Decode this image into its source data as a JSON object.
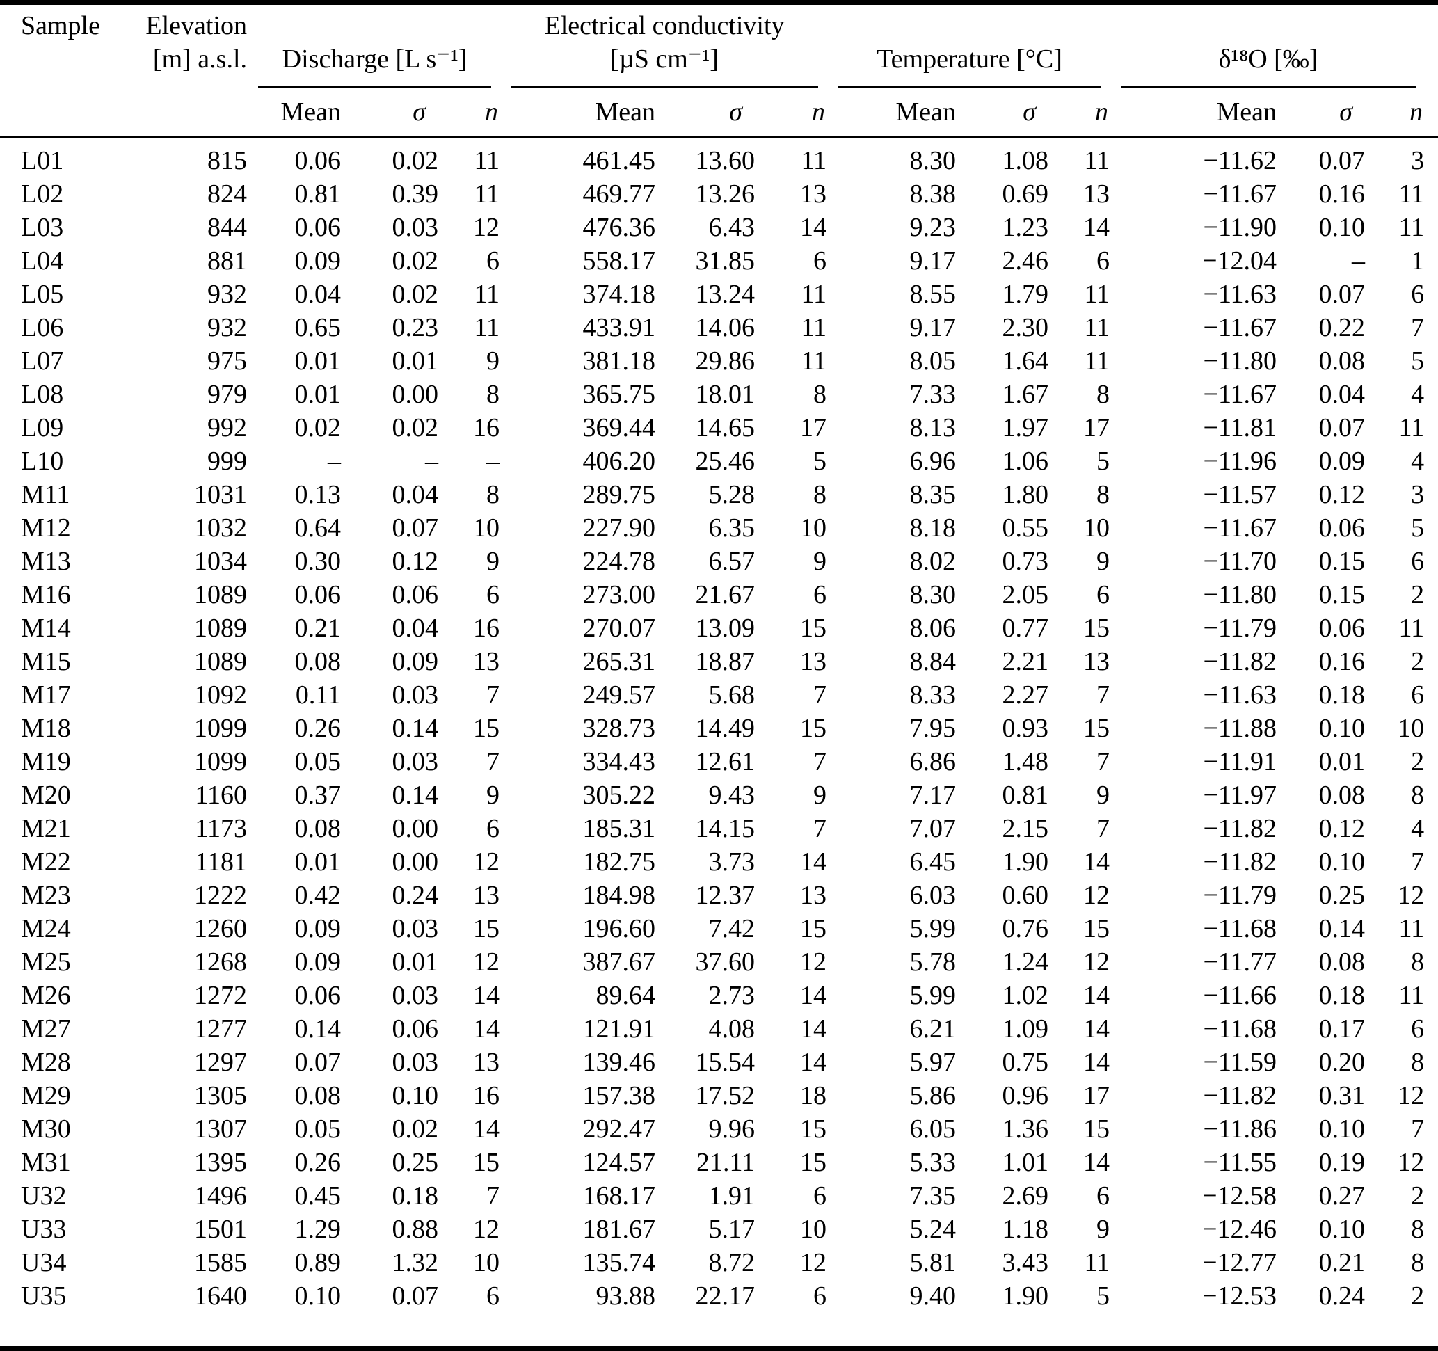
{
  "table": {
    "columns": {
      "sample": "Sample",
      "elevation_line1": "Elevation",
      "elevation_line2": "[m] a.s.l.",
      "groups": [
        {
          "title_line1": "",
          "title_line2": "Discharge [L s⁻¹]"
        },
        {
          "title_line1": "Electrical conductivity",
          "title_line2": "[µS cm⁻¹]"
        },
        {
          "title_line1": "",
          "title_line2": "Temperature [°C]"
        },
        {
          "title_line1": "",
          "title_line2": "δ¹⁸O [‰]"
        }
      ],
      "sub": {
        "mean": "Mean",
        "sigma": "σ",
        "n": "n"
      }
    },
    "rows": [
      [
        "L01",
        "815",
        "0.06",
        "0.02",
        "11",
        "461.45",
        "13.60",
        "11",
        "8.30",
        "1.08",
        "11",
        "−11.62",
        "0.07",
        "3"
      ],
      [
        "L02",
        "824",
        "0.81",
        "0.39",
        "11",
        "469.77",
        "13.26",
        "13",
        "8.38",
        "0.69",
        "13",
        "−11.67",
        "0.16",
        "11"
      ],
      [
        "L03",
        "844",
        "0.06",
        "0.03",
        "12",
        "476.36",
        "6.43",
        "14",
        "9.23",
        "1.23",
        "14",
        "−11.90",
        "0.10",
        "11"
      ],
      [
        "L04",
        "881",
        "0.09",
        "0.02",
        "6",
        "558.17",
        "31.85",
        "6",
        "9.17",
        "2.46",
        "6",
        "−12.04",
        "–",
        "1"
      ],
      [
        "L05",
        "932",
        "0.04",
        "0.02",
        "11",
        "374.18",
        "13.24",
        "11",
        "8.55",
        "1.79",
        "11",
        "−11.63",
        "0.07",
        "6"
      ],
      [
        "L06",
        "932",
        "0.65",
        "0.23",
        "11",
        "433.91",
        "14.06",
        "11",
        "9.17",
        "2.30",
        "11",
        "−11.67",
        "0.22",
        "7"
      ],
      [
        "L07",
        "975",
        "0.01",
        "0.01",
        "9",
        "381.18",
        "29.86",
        "11",
        "8.05",
        "1.64",
        "11",
        "−11.80",
        "0.08",
        "5"
      ],
      [
        "L08",
        "979",
        "0.01",
        "0.00",
        "8",
        "365.75",
        "18.01",
        "8",
        "7.33",
        "1.67",
        "8",
        "−11.67",
        "0.04",
        "4"
      ],
      [
        "L09",
        "992",
        "0.02",
        "0.02",
        "16",
        "369.44",
        "14.65",
        "17",
        "8.13",
        "1.97",
        "17",
        "−11.81",
        "0.07",
        "11"
      ],
      [
        "L10",
        "999",
        "–",
        "–",
        "–",
        "406.20",
        "25.46",
        "5",
        "6.96",
        "1.06",
        "5",
        "−11.96",
        "0.09",
        "4"
      ],
      [
        "M11",
        "1031",
        "0.13",
        "0.04",
        "8",
        "289.75",
        "5.28",
        "8",
        "8.35",
        "1.80",
        "8",
        "−11.57",
        "0.12",
        "3"
      ],
      [
        "M12",
        "1032",
        "0.64",
        "0.07",
        "10",
        "227.90",
        "6.35",
        "10",
        "8.18",
        "0.55",
        "10",
        "−11.67",
        "0.06",
        "5"
      ],
      [
        "M13",
        "1034",
        "0.30",
        "0.12",
        "9",
        "224.78",
        "6.57",
        "9",
        "8.02",
        "0.73",
        "9",
        "−11.70",
        "0.15",
        "6"
      ],
      [
        "M16",
        "1089",
        "0.06",
        "0.06",
        "6",
        "273.00",
        "21.67",
        "6",
        "8.30",
        "2.05",
        "6",
        "−11.80",
        "0.15",
        "2"
      ],
      [
        "M14",
        "1089",
        "0.21",
        "0.04",
        "16",
        "270.07",
        "13.09",
        "15",
        "8.06",
        "0.77",
        "15",
        "−11.79",
        "0.06",
        "11"
      ],
      [
        "M15",
        "1089",
        "0.08",
        "0.09",
        "13",
        "265.31",
        "18.87",
        "13",
        "8.84",
        "2.21",
        "13",
        "−11.82",
        "0.16",
        "2"
      ],
      [
        "M17",
        "1092",
        "0.11",
        "0.03",
        "7",
        "249.57",
        "5.68",
        "7",
        "8.33",
        "2.27",
        "7",
        "−11.63",
        "0.18",
        "6"
      ],
      [
        "M18",
        "1099",
        "0.26",
        "0.14",
        "15",
        "328.73",
        "14.49",
        "15",
        "7.95",
        "0.93",
        "15",
        "−11.88",
        "0.10",
        "10"
      ],
      [
        "M19",
        "1099",
        "0.05",
        "0.03",
        "7",
        "334.43",
        "12.61",
        "7",
        "6.86",
        "1.48",
        "7",
        "−11.91",
        "0.01",
        "2"
      ],
      [
        "M20",
        "1160",
        "0.37",
        "0.14",
        "9",
        "305.22",
        "9.43",
        "9",
        "7.17",
        "0.81",
        "9",
        "−11.97",
        "0.08",
        "8"
      ],
      [
        "M21",
        "1173",
        "0.08",
        "0.00",
        "6",
        "185.31",
        "14.15",
        "7",
        "7.07",
        "2.15",
        "7",
        "−11.82",
        "0.12",
        "4"
      ],
      [
        "M22",
        "1181",
        "0.01",
        "0.00",
        "12",
        "182.75",
        "3.73",
        "14",
        "6.45",
        "1.90",
        "14",
        "−11.82",
        "0.10",
        "7"
      ],
      [
        "M23",
        "1222",
        "0.42",
        "0.24",
        "13",
        "184.98",
        "12.37",
        "13",
        "6.03",
        "0.60",
        "12",
        "−11.79",
        "0.25",
        "12"
      ],
      [
        "M24",
        "1260",
        "0.09",
        "0.03",
        "15",
        "196.60",
        "7.42",
        "15",
        "5.99",
        "0.76",
        "15",
        "−11.68",
        "0.14",
        "11"
      ],
      [
        "M25",
        "1268",
        "0.09",
        "0.01",
        "12",
        "387.67",
        "37.60",
        "12",
        "5.78",
        "1.24",
        "12",
        "−11.77",
        "0.08",
        "8"
      ],
      [
        "M26",
        "1272",
        "0.06",
        "0.03",
        "14",
        "89.64",
        "2.73",
        "14",
        "5.99",
        "1.02",
        "14",
        "−11.66",
        "0.18",
        "11"
      ],
      [
        "M27",
        "1277",
        "0.14",
        "0.06",
        "14",
        "121.91",
        "4.08",
        "14",
        "6.21",
        "1.09",
        "14",
        "−11.68",
        "0.17",
        "6"
      ],
      [
        "M28",
        "1297",
        "0.07",
        "0.03",
        "13",
        "139.46",
        "15.54",
        "14",
        "5.97",
        "0.75",
        "14",
        "−11.59",
        "0.20",
        "8"
      ],
      [
        "M29",
        "1305",
        "0.08",
        "0.10",
        "16",
        "157.38",
        "17.52",
        "18",
        "5.86",
        "0.96",
        "17",
        "−11.82",
        "0.31",
        "12"
      ],
      [
        "M30",
        "1307",
        "0.05",
        "0.02",
        "14",
        "292.47",
        "9.96",
        "15",
        "6.05",
        "1.36",
        "15",
        "−11.86",
        "0.10",
        "7"
      ],
      [
        "M31",
        "1395",
        "0.26",
        "0.25",
        "15",
        "124.57",
        "21.11",
        "15",
        "5.33",
        "1.01",
        "14",
        "−11.55",
        "0.19",
        "12"
      ],
      [
        "U32",
        "1496",
        "0.45",
        "0.18",
        "7",
        "168.17",
        "1.91",
        "6",
        "7.35",
        "2.69",
        "6",
        "−12.58",
        "0.27",
        "2"
      ],
      [
        "U33",
        "1501",
        "1.29",
        "0.88",
        "12",
        "181.67",
        "5.17",
        "10",
        "5.24",
        "1.18",
        "9",
        "−12.46",
        "0.10",
        "8"
      ],
      [
        "U34",
        "1585",
        "0.89",
        "1.32",
        "10",
        "135.74",
        "8.72",
        "12",
        "5.81",
        "3.43",
        "11",
        "−12.77",
        "0.21",
        "8"
      ],
      [
        "U35",
        "1640",
        "0.10",
        "0.07",
        "6",
        "93.88",
        "22.17",
        "6",
        "9.40",
        "1.90",
        "5",
        "−12.53",
        "0.24",
        "2"
      ]
    ]
  }
}
